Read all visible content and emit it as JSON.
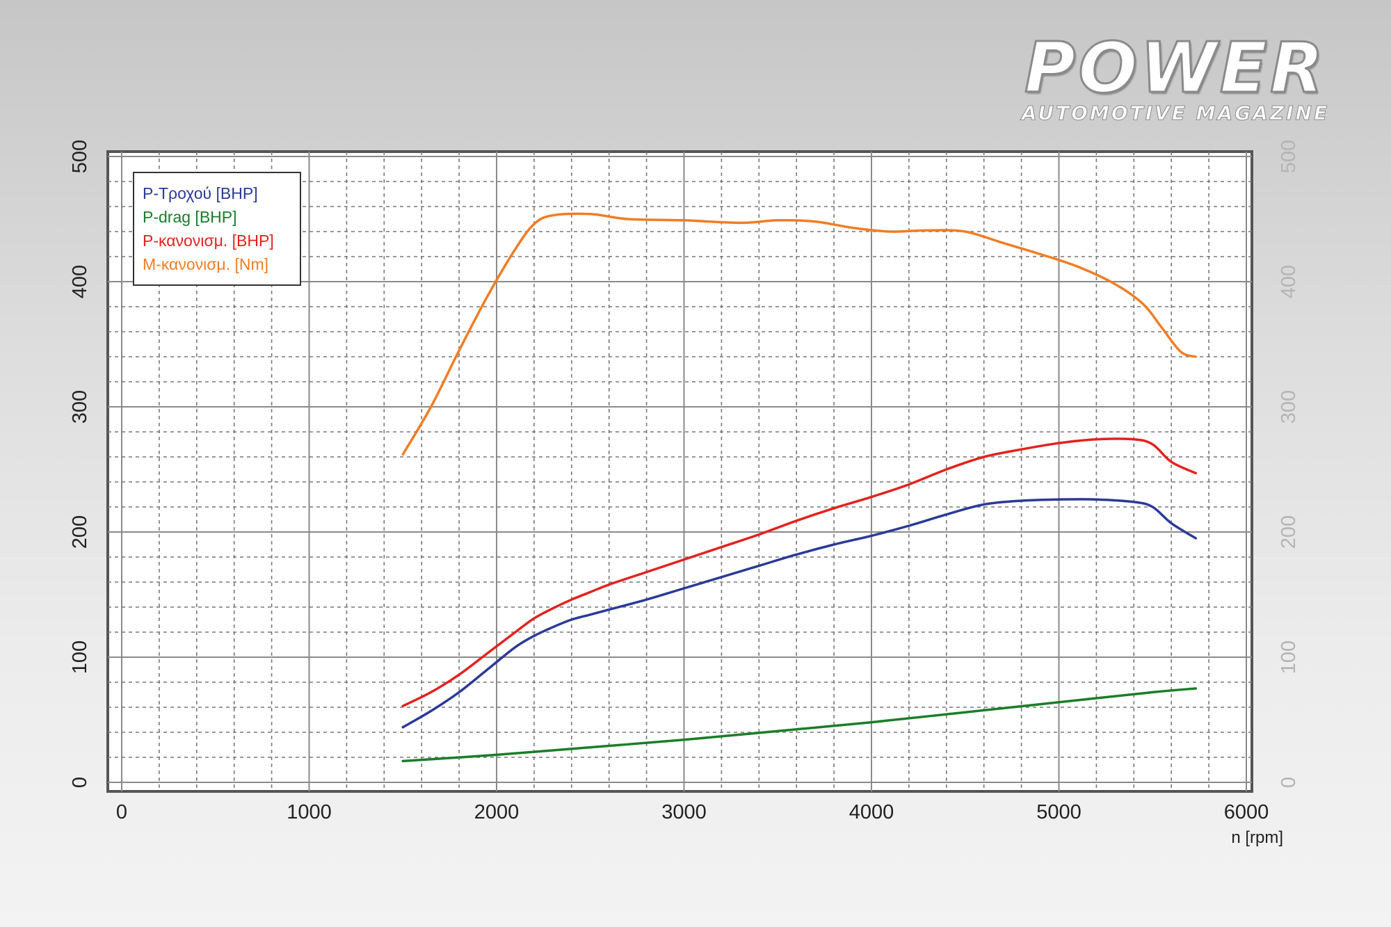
{
  "brand": {
    "title": "POWER",
    "subtitle": "AUTOMOTIVE MAGAZINE"
  },
  "chart_data": {
    "type": "line",
    "xlabel": "n [rpm]",
    "ylabel": "",
    "xlim": [
      0,
      6000
    ],
    "ylim": [
      0,
      500
    ],
    "xticks": [
      "0",
      "1000",
      "2000",
      "3000",
      "4000",
      "5000",
      "6000"
    ],
    "yticks": [
      "0",
      "100",
      "200",
      "300",
      "400",
      "500"
    ],
    "yticks_right": [
      "0",
      "100",
      "200",
      "300",
      "400",
      "500"
    ],
    "grid": true,
    "legend_position": "top-left",
    "series": [
      {
        "name": "P-Τροχού [BHP]",
        "color": "#2b3a97",
        "points": [
          [
            1500,
            44
          ],
          [
            1650,
            57
          ],
          [
            1800,
            72
          ],
          [
            1950,
            90
          ],
          [
            2100,
            108
          ],
          [
            2200,
            117
          ],
          [
            2300,
            124
          ],
          [
            2400,
            130
          ],
          [
            2500,
            134
          ],
          [
            2600,
            138
          ],
          [
            2800,
            146
          ],
          [
            3000,
            155
          ],
          [
            3200,
            164
          ],
          [
            3400,
            173
          ],
          [
            3600,
            182
          ],
          [
            3800,
            190
          ],
          [
            4000,
            197
          ],
          [
            4200,
            205
          ],
          [
            4400,
            214
          ],
          [
            4600,
            222
          ],
          [
            4800,
            225
          ],
          [
            5000,
            226
          ],
          [
            5200,
            226
          ],
          [
            5400,
            224
          ],
          [
            5500,
            220
          ],
          [
            5600,
            207
          ],
          [
            5730,
            195
          ]
        ]
      },
      {
        "name": "P-drag [BHP]",
        "color": "#1a7d2a",
        "points": [
          [
            1500,
            17
          ],
          [
            2000,
            22
          ],
          [
            2500,
            28
          ],
          [
            3000,
            34
          ],
          [
            3500,
            41
          ],
          [
            4000,
            48
          ],
          [
            4500,
            56
          ],
          [
            5000,
            64
          ],
          [
            5500,
            72
          ],
          [
            5730,
            75
          ]
        ]
      },
      {
        "name": "P-κανονισμ. [BHP]",
        "color": "#e2221f",
        "points": [
          [
            1500,
            61
          ],
          [
            1650,
            72
          ],
          [
            1800,
            86
          ],
          [
            1950,
            103
          ],
          [
            2100,
            120
          ],
          [
            2200,
            131
          ],
          [
            2300,
            139
          ],
          [
            2400,
            146
          ],
          [
            2500,
            152
          ],
          [
            2600,
            158
          ],
          [
            2800,
            168
          ],
          [
            3000,
            178
          ],
          [
            3200,
            188
          ],
          [
            3400,
            198
          ],
          [
            3600,
            209
          ],
          [
            3800,
            219
          ],
          [
            4000,
            228
          ],
          [
            4200,
            238
          ],
          [
            4400,
            250
          ],
          [
            4600,
            260
          ],
          [
            4800,
            266
          ],
          [
            5000,
            271
          ],
          [
            5200,
            274
          ],
          [
            5400,
            274
          ],
          [
            5500,
            270
          ],
          [
            5600,
            256
          ],
          [
            5730,
            247
          ]
        ]
      },
      {
        "name": "M-κανονισμ. [Nm]",
        "color": "#f07d25",
        "points": [
          [
            1500,
            262
          ],
          [
            1650,
            300
          ],
          [
            1800,
            345
          ],
          [
            1950,
            388
          ],
          [
            2100,
            426
          ],
          [
            2200,
            446
          ],
          [
            2300,
            453
          ],
          [
            2500,
            454
          ],
          [
            2700,
            450
          ],
          [
            3000,
            449
          ],
          [
            3300,
            447
          ],
          [
            3500,
            449
          ],
          [
            3700,
            448
          ],
          [
            3900,
            443
          ],
          [
            4100,
            440
          ],
          [
            4300,
            441
          ],
          [
            4500,
            440
          ],
          [
            4700,
            431
          ],
          [
            4900,
            422
          ],
          [
            5100,
            412
          ],
          [
            5300,
            398
          ],
          [
            5450,
            382
          ],
          [
            5550,
            363
          ],
          [
            5650,
            344
          ],
          [
            5730,
            340
          ]
        ]
      }
    ]
  }
}
